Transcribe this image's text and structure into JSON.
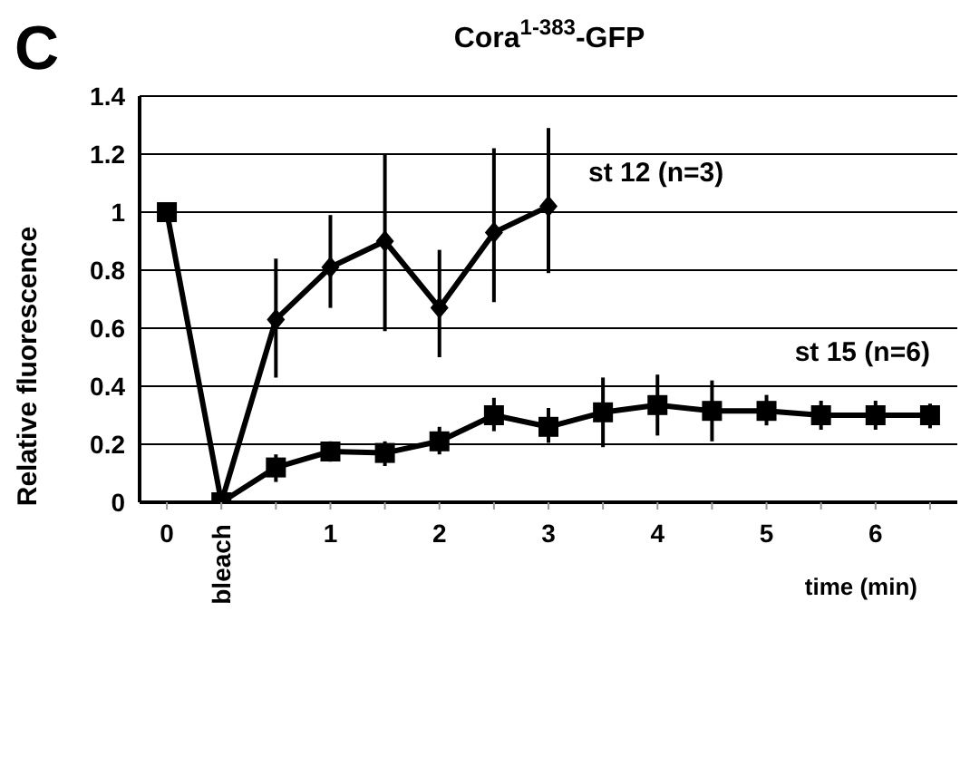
{
  "chart_data": {
    "type": "line",
    "title": "Cora$^{1-383}$-GFP",
    "xlabel": "time (min)",
    "ylabel": "Relative fluorescence",
    "annotations": [
      "C"
    ],
    "categories": [
      "0",
      "bleach",
      null,
      "1",
      null,
      "2",
      null,
      "3",
      null,
      "4",
      null,
      "5",
      null,
      "6",
      null
    ],
    "series": [
      {
        "name": "st 12 (n=3)",
        "color": "#000000",
        "marker": "diamond",
        "values": [
          null,
          0,
          0.63,
          0.81,
          0.9,
          0.67,
          0.93,
          1.02,
          null,
          null,
          null,
          null,
          null,
          null,
          null
        ],
        "errors": [
          null,
          null,
          [
            0.43,
            0.84
          ],
          [
            0.67,
            0.99
          ],
          [
            0.59,
            1.2
          ],
          [
            0.5,
            0.87
          ],
          [
            0.69,
            1.22
          ],
          [
            0.79,
            1.29
          ],
          null,
          null,
          null,
          null,
          null,
          null,
          null
        ]
      },
      {
        "name": "st 15 (n=6)",
        "color": "#000000",
        "marker": "square",
        "values": [
          1,
          0,
          0.12,
          0.175,
          0.17,
          0.21,
          0.3,
          0.26,
          0.31,
          0.335,
          0.315,
          0.315,
          0.3,
          0.3,
          0.3
        ],
        "errors": [
          null,
          null,
          [
            0.07,
            0.165
          ],
          [
            0.14,
            0.21
          ],
          [
            0.125,
            0.21
          ],
          [
            0.165,
            0.26
          ],
          [
            0.245,
            0.36
          ],
          [
            0.205,
            0.325
          ],
          [
            0.19,
            0.43
          ],
          [
            0.23,
            0.44
          ],
          [
            0.21,
            0.42
          ],
          [
            0.265,
            0.37
          ],
          [
            0.25,
            0.35
          ],
          [
            0.25,
            0.35
          ],
          [
            0.255,
            0.34
          ]
        ]
      }
    ],
    "ylim": [
      0,
      1.4
    ],
    "yticks": [
      0,
      0.2,
      0.4,
      0.6,
      0.8,
      1,
      1.2,
      1.4
    ],
    "grid": "y",
    "legend": false,
    "line_style": "solid"
  }
}
